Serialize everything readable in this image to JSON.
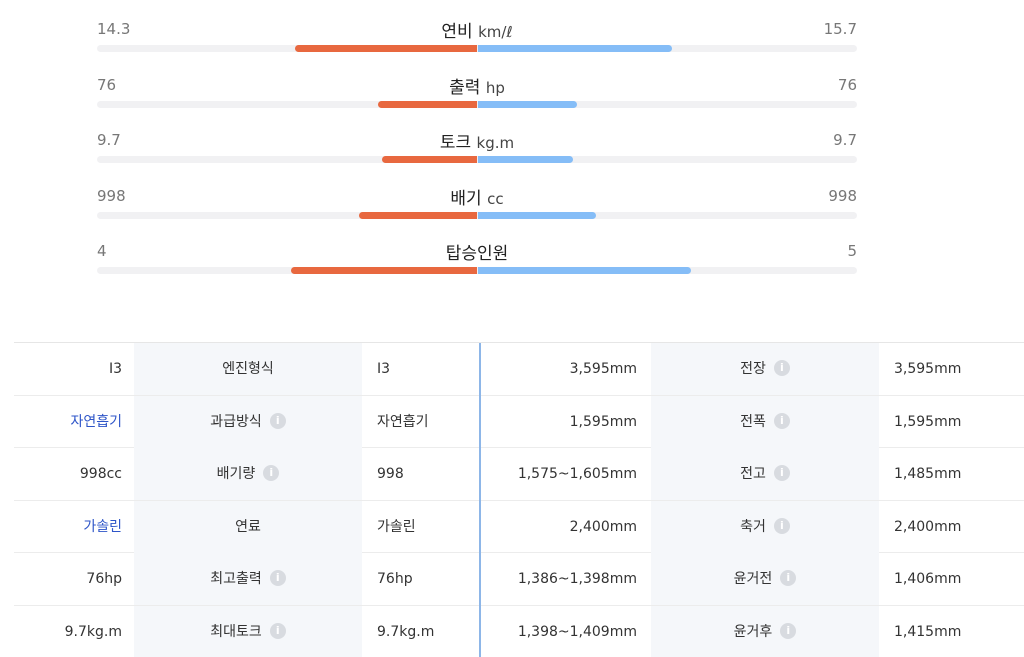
{
  "comparison": [
    {
      "label": "연비",
      "unit": "km/ℓ",
      "left": "14.3",
      "right": "15.7",
      "left_fill": 0.48,
      "right_fill": 0.51
    },
    {
      "label": "출력",
      "unit": "hp",
      "left": "76",
      "right": "76",
      "left_fill": 0.26,
      "right_fill": 0.26
    },
    {
      "label": "토크",
      "unit": "kg.m",
      "left": "9.7",
      "right": "9.7",
      "left_fill": 0.25,
      "right_fill": 0.25
    },
    {
      "label": "배기",
      "unit": "cc",
      "left": "998",
      "right": "998",
      "left_fill": 0.31,
      "right_fill": 0.31
    },
    {
      "label": "탑승인원",
      "unit": "",
      "left": "4",
      "right": "5",
      "left_fill": 0.49,
      "right_fill": 0.56
    }
  ],
  "colors": {
    "left_bar": "#e8683f",
    "right_bar": "#85bdf7",
    "blue_text": "#2e55c8",
    "divider": "#8db6e8"
  },
  "spec_table": [
    {
      "c1": "I3",
      "c1_blue": false,
      "c2": "엔진형식",
      "c2_info": false,
      "c3": "I3",
      "c4": "3,595mm",
      "c5": "전장",
      "c5_info": true,
      "c6": "3,595mm"
    },
    {
      "c1": "자연흡기",
      "c1_blue": true,
      "c2": "과급방식",
      "c2_info": true,
      "c3": "자연흡기",
      "c4": "1,595mm",
      "c5": "전폭",
      "c5_info": true,
      "c6": "1,595mm"
    },
    {
      "c1": "998cc",
      "c1_blue": false,
      "c2": "배기량",
      "c2_info": true,
      "c3": "998",
      "c4": "1,575~1,605mm",
      "c5": "전고",
      "c5_info": true,
      "c6": "1,485mm"
    },
    {
      "c1": "가솔린",
      "c1_blue": true,
      "c2": "연료",
      "c2_info": false,
      "c3": "가솔린",
      "c4": "2,400mm",
      "c5": "축거",
      "c5_info": true,
      "c6": "2,400mm"
    },
    {
      "c1": "76hp",
      "c1_blue": false,
      "c2": "최고출력",
      "c2_info": true,
      "c3": "76hp",
      "c4": "1,386~1,398mm",
      "c5": "윤거전",
      "c5_info": true,
      "c6": "1,406mm"
    },
    {
      "c1": "9.7kg.m",
      "c1_blue": false,
      "c2": "최대토크",
      "c2_info": true,
      "c3": "9.7kg.m",
      "c4": "1,398~1,409mm",
      "c5": "윤거후",
      "c5_info": true,
      "c6": "1,415mm"
    }
  ],
  "icons": {
    "info": "info-icon"
  }
}
